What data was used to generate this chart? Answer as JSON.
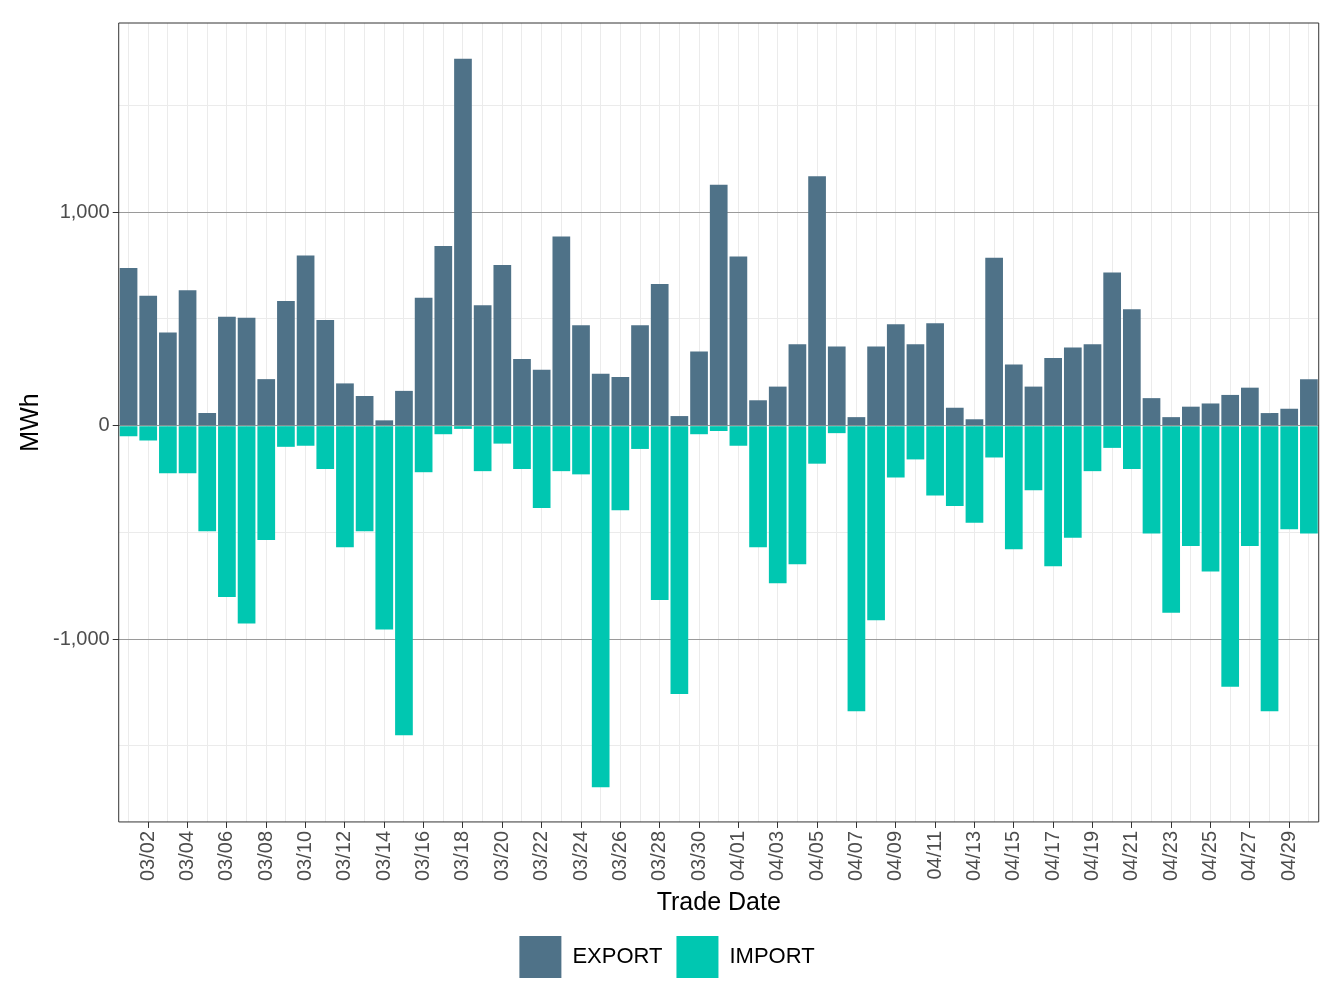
{
  "chart_data": {
    "type": "bar",
    "xlabel": "Trade Date",
    "ylabel": "MWh",
    "categories": [
      null,
      "03/02",
      null,
      "03/04",
      null,
      "03/06",
      null,
      "03/08",
      null,
      "03/10",
      null,
      "03/12",
      null,
      "03/14",
      null,
      "03/16",
      null,
      "03/18",
      null,
      "03/20",
      null,
      "03/22",
      null,
      "03/24",
      null,
      "03/26",
      null,
      "03/28",
      null,
      "03/30",
      null,
      "04/01",
      null,
      "04/03",
      null,
      "04/05",
      null,
      "04/07",
      null,
      "04/09",
      null,
      "04/11",
      null,
      "04/13",
      null,
      "04/15",
      null,
      "04/17",
      null,
      "04/19",
      null,
      "04/21",
      null,
      "04/23",
      null,
      "04/25",
      null,
      "04/27",
      null,
      "04/29",
      null
    ],
    "series": [
      {
        "name": "EXPORT",
        "color": "#4f7288",
        "values": [
          738,
          609,
          436,
          634,
          59,
          510,
          505,
          218,
          584,
          797,
          495,
          198,
          139,
          25,
          163,
          599,
          842,
          1718,
          564,
          752,
          312,
          262,
          886,
          470,
          243,
          228,
          470,
          663,
          45,
          347,
          1129,
          792,
          119,
          183,
          381,
          1168,
          371,
          40,
          371,
          475,
          381,
          480,
          84,
          30,
          787,
          287,
          183,
          317,
          366,
          381,
          718,
          545,
          129,
          40,
          89,
          104,
          144,
          178,
          59,
          79,
          218
        ]
      },
      {
        "name": "IMPORT",
        "color": "#00c7b1",
        "values": [
          -50,
          -69,
          -223,
          -223,
          -495,
          -802,
          -926,
          -535,
          -99,
          -94,
          -203,
          -569,
          -495,
          -955,
          -1450,
          -218,
          -40,
          -15,
          -213,
          -84,
          -203,
          -386,
          -213,
          -228,
          -1693,
          -396,
          -109,
          -817,
          -1257,
          -40,
          -25,
          -94,
          -569,
          -738,
          -649,
          -178,
          -35,
          -1337,
          -911,
          -243,
          -158,
          -327,
          -376,
          -455,
          -149,
          -579,
          -302,
          -658,
          -525,
          -213,
          -104,
          -203,
          -505,
          -876,
          -564,
          -683,
          -1223,
          -564,
          -1337,
          -485,
          -505
        ]
      }
    ],
    "stacked": true,
    "ylim": [
      -1856,
      1886
    ],
    "yticks": [
      {
        "value": -1500,
        "label": null
      },
      {
        "value": -1000,
        "label": "-1,000"
      },
      {
        "value": -500,
        "label": null
      },
      0,
      {
        "value": 500,
        "label": null
      },
      {
        "value": 1000,
        "label": "1,000"
      },
      {
        "value": 1500,
        "label": null
      }
    ],
    "grid": true,
    "legend": "bottom"
  }
}
